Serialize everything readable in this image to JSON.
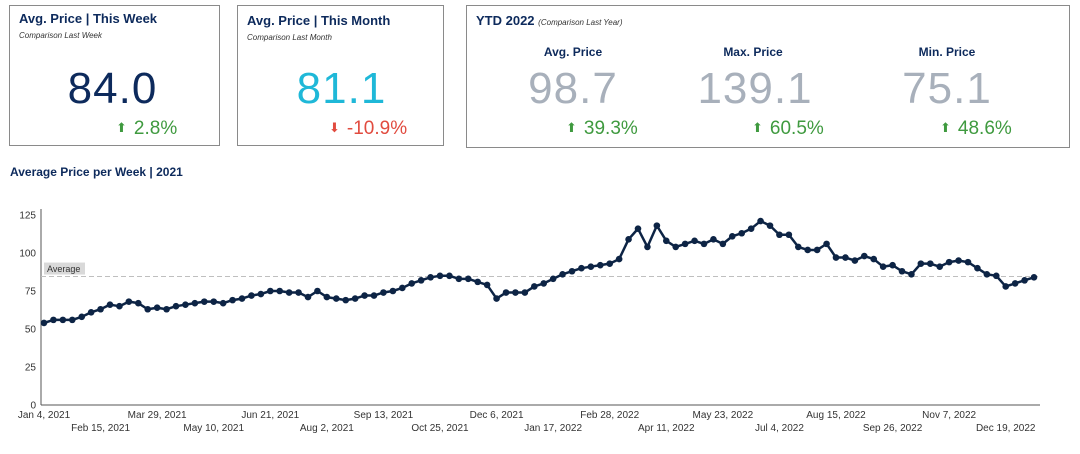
{
  "kpi_week": {
    "title": "Avg. Price | This Week",
    "subtitle": "Comparison Last Week",
    "value": "84.0",
    "change": "2.8%",
    "direction": "up"
  },
  "kpi_month": {
    "title": "Avg. Price | This Month",
    "subtitle": "Comparison Last Month",
    "value": "81.1",
    "change": "-10.9%",
    "direction": "down"
  },
  "ytd": {
    "title": "YTD 2022",
    "subtitle": "(Comparison Last Year)",
    "metrics": [
      {
        "label": "Avg. Price",
        "value": "98.7",
        "change": "39.3%",
        "direction": "up"
      },
      {
        "label": "Max. Price",
        "value": "139.1",
        "change": "60.5%",
        "direction": "up"
      },
      {
        "label": "Min. Price",
        "value": "75.1",
        "change": "48.6%",
        "direction": "up"
      }
    ]
  },
  "colors": {
    "navy": "#0d2a5c",
    "cyan": "#1fb8d8",
    "gray_value": "#a8b0bb",
    "up_green": "#3f9a3f",
    "down_red": "#e14b3f",
    "line": "#0d2445"
  },
  "icons": {
    "up": "arrow-up-icon",
    "down": "arrow-down-icon"
  },
  "chart_title": "Average Price per Week | 2021",
  "chart_data": {
    "type": "line",
    "title": "Average Price per Week | 2021",
    "xlabel": "",
    "ylabel": "",
    "ylim": [
      0,
      125
    ],
    "yticks": [
      0,
      25,
      50,
      75,
      100,
      125
    ],
    "average_line": {
      "label": "Average",
      "value": 84.5
    },
    "grid": false,
    "x_tick_labels": [
      "Jan 4, 2021",
      "Feb 15, 2021",
      "Mar 29, 2021",
      "May 10, 2021",
      "Jun 21, 2021",
      "Aug 2, 2021",
      "Sep 13, 2021",
      "Oct 25, 2021",
      "Dec 6, 2021",
      "Jan 17, 2022",
      "Feb 28, 2022",
      "Apr 11, 2022",
      "May 23, 2022",
      "Jul 4, 2022",
      "Aug 15, 2022",
      "Sep 26, 2022",
      "Nov 7, 2022",
      "Dec 19, 2022"
    ],
    "x_tick_index": [
      0,
      6,
      12,
      18,
      24,
      30,
      36,
      42,
      48,
      54,
      60,
      66,
      72,
      78,
      84,
      90,
      96,
      102
    ],
    "x_start": "Jan 4, 2021",
    "x_step_days": 7,
    "series": [
      {
        "values": [
          54,
          56,
          56,
          56,
          58,
          61,
          63,
          66,
          65,
          68,
          67,
          63,
          64,
          63,
          65,
          66,
          67,
          68,
          68,
          67,
          69,
          70,
          72,
          73,
          75,
          75,
          74,
          74,
          71,
          75,
          71,
          70,
          69,
          70,
          72,
          72,
          74,
          75,
          77,
          80,
          82,
          84,
          85,
          85,
          83,
          83,
          81,
          79,
          70,
          74,
          74,
          74,
          78,
          80,
          83,
          86,
          88,
          90,
          91,
          92,
          93,
          96,
          109,
          116,
          104,
          118,
          108,
          104,
          106,
          108,
          106,
          109,
          106,
          111,
          113,
          116,
          121,
          118,
          112,
          112,
          104,
          102,
          102,
          106,
          97,
          97,
          95,
          98,
          96,
          91,
          92,
          88,
          86,
          93,
          93,
          91,
          94,
          95,
          94,
          90,
          86,
          85,
          78,
          80,
          82,
          84
        ]
      }
    ]
  }
}
